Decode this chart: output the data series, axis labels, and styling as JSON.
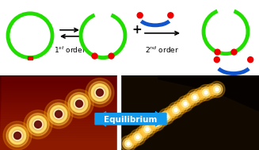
{
  "bg_color": "#ffffff",
  "green_color": "#22dd00",
  "red_color": "#ee0000",
  "blue_color": "#1155cc",
  "arrow_color": "#1199ee",
  "equilibrium_text": "Equilibrium",
  "stm_left_bg": "#880000",
  "stm_right_bg": "#100800",
  "fig_width": 3.27,
  "fig_height": 1.89,
  "dpi": 100
}
